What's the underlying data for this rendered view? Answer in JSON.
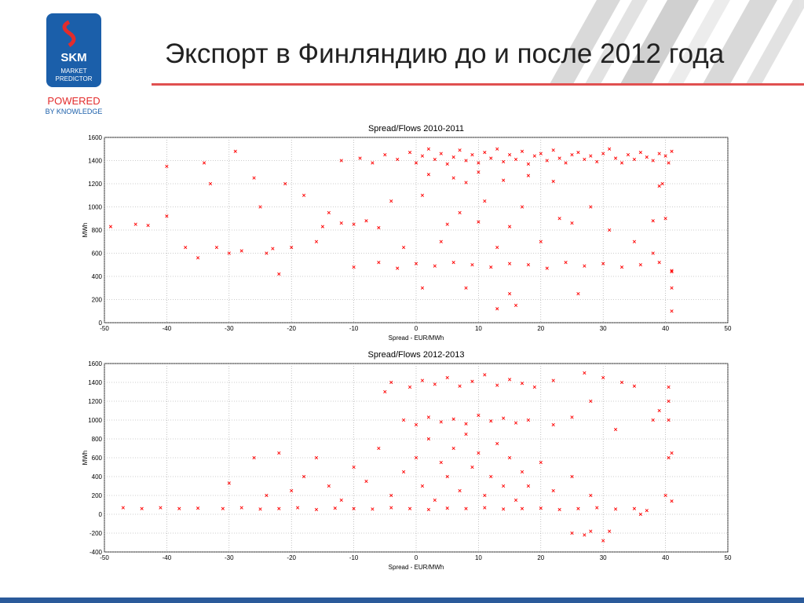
{
  "slide": {
    "title": "Экспорт в Финляндию до и после 2012 года",
    "logo": {
      "brand": "SKM",
      "line1": "MARKET",
      "line2": "PREDICTOR",
      "powered": "POWERED",
      "knowledge": "BY KNOWLEDGE"
    }
  },
  "chart_data": [
    {
      "type": "scatter",
      "title": "Spread/Flows 2010-2011",
      "x_label": "Spread - EUR/MWh",
      "y_label": "MWh",
      "color": "#ff0000",
      "marker": "x",
      "grid": true,
      "xlim": [
        -50,
        50
      ],
      "xticks": [
        -50,
        -40,
        -30,
        -20,
        -10,
        0,
        10,
        20,
        30,
        40,
        50
      ],
      "ylim": [
        0,
        1600
      ],
      "yticks": [
        0,
        200,
        400,
        600,
        800,
        1000,
        1200,
        1400,
        1600
      ],
      "x": [
        -12,
        -9,
        -7,
        -5,
        -3,
        -1,
        0,
        1,
        2,
        3,
        4,
        5,
        6,
        7,
        8,
        9,
        10,
        11,
        12,
        13,
        14,
        15,
        16,
        17,
        18,
        19,
        20,
        21,
        22,
        23,
        24,
        25,
        26,
        27,
        28,
        29,
        30,
        31,
        32,
        33,
        34,
        35,
        36,
        37,
        38,
        39,
        40,
        40.5,
        41,
        39.5,
        39,
        2,
        6,
        10,
        14,
        18,
        22,
        8,
        -10,
        -6,
        -3,
        0,
        3,
        6,
        9,
        12,
        15,
        18,
        21,
        24,
        27,
        30,
        33,
        36,
        39,
        41,
        -15,
        -12,
        -10,
        -8,
        -6,
        5,
        10,
        15,
        25,
        38,
        -25,
        -18,
        -16,
        -14,
        -4,
        -2,
        1,
        4,
        7,
        11,
        13,
        17,
        20,
        23,
        28,
        31,
        35,
        38,
        40,
        -49,
        -45,
        -43,
        -40,
        -40,
        -37,
        -35,
        -34,
        -33,
        -32,
        -30,
        -29,
        -28,
        -26,
        -24,
        -23,
        -22,
        -21,
        -20,
        41,
        41,
        41,
        26,
        15,
        13,
        16,
        1,
        8
      ],
      "values": [
        1400,
        1420,
        1380,
        1450,
        1410,
        1470,
        1380,
        1440,
        1500,
        1410,
        1460,
        1370,
        1430,
        1490,
        1400,
        1450,
        1380,
        1470,
        1420,
        1500,
        1390,
        1450,
        1410,
        1480,
        1370,
        1440,
        1460,
        1400,
        1490,
        1420,
        1380,
        1450,
        1470,
        1410,
        1440,
        1390,
        1460,
        1500,
        1420,
        1380,
        1450,
        1410,
        1470,
        1430,
        1400,
        1460,
        1440,
        1380,
        1480,
        1200,
        1180,
        1280,
        1250,
        1300,
        1230,
        1270,
        1220,
        1210,
        480,
        520,
        470,
        510,
        490,
        520,
        500,
        480,
        510,
        500,
        470,
        520,
        490,
        510,
        480,
        500,
        520,
        440,
        830,
        860,
        850,
        880,
        820,
        850,
        870,
        830,
        860,
        880,
        1000,
        1100,
        700,
        950,
        1050,
        650,
        1100,
        700,
        950,
        1050,
        650,
        1000,
        700,
        900,
        1000,
        800,
        700,
        600,
        900,
        830,
        850,
        840,
        1350,
        920,
        650,
        560,
        1380,
        1200,
        650,
        600,
        1480,
        620,
        1250,
        600,
        640,
        420,
        1200,
        650,
        100,
        300,
        450,
        250,
        250,
        120,
        150,
        300,
        300
      ]
    },
    {
      "type": "scatter",
      "title": "Spread/Flows 2012-2013",
      "x_label": "Spread - EUR/MWh",
      "y_label": "MWh",
      "color": "#ff0000",
      "marker": "x",
      "grid": true,
      "xlim": [
        -50,
        50
      ],
      "xticks": [
        -50,
        -40,
        -30,
        -20,
        -10,
        0,
        10,
        20,
        30,
        40,
        50
      ],
      "ylim": [
        -400,
        1600
      ],
      "yticks": [
        -400,
        -200,
        0,
        200,
        400,
        600,
        800,
        1000,
        1200,
        1400,
        1600
      ],
      "x": [
        -47,
        -44,
        -41,
        -38,
        -35,
        -31,
        -28,
        -25,
        -22,
        -19,
        -16,
        -13,
        -10,
        -7,
        -4,
        -1,
        2,
        5,
        8,
        11,
        14,
        17,
        20,
        23,
        26,
        29,
        32,
        35,
        37,
        -4,
        -1,
        1,
        3,
        5,
        7,
        9,
        11,
        13,
        15,
        17,
        19,
        22,
        -2,
        0,
        2,
        4,
        6,
        8,
        10,
        12,
        14,
        16,
        18,
        22,
        25,
        -20,
        -18,
        -16,
        -14,
        -12,
        -10,
        -8,
        -6,
        -4,
        -2,
        0,
        1,
        2,
        3,
        4,
        5,
        6,
        7,
        8,
        9,
        10,
        11,
        12,
        13,
        14,
        15,
        16,
        17,
        18,
        20,
        22,
        25,
        28,
        -22,
        -26,
        -30,
        -24,
        40.5,
        40.5,
        40.5,
        41,
        40.5,
        40,
        41,
        36,
        39,
        -5,
        27,
        30,
        33,
        35,
        38,
        28,
        32,
        25,
        27,
        30,
        31,
        28
      ],
      "values": [
        70,
        60,
        70,
        60,
        65,
        60,
        70,
        55,
        60,
        70,
        50,
        65,
        60,
        55,
        70,
        60,
        50,
        65,
        60,
        70,
        55,
        60,
        65,
        50,
        60,
        70,
        55,
        60,
        40,
        1400,
        1350,
        1420,
        1380,
        1450,
        1360,
        1410,
        1480,
        1370,
        1430,
        1390,
        1350,
        1420,
        1000,
        950,
        1030,
        980,
        1010,
        960,
        1050,
        990,
        1020,
        970,
        1000,
        950,
        1030,
        250,
        400,
        600,
        300,
        150,
        500,
        350,
        700,
        200,
        450,
        600,
        300,
        800,
        150,
        550,
        400,
        700,
        250,
        850,
        500,
        650,
        200,
        400,
        750,
        300,
        600,
        150,
        450,
        300,
        550,
        250,
        400,
        200,
        650,
        600,
        330,
        200,
        1350,
        1200,
        1000,
        650,
        600,
        200,
        140,
        0,
        1100,
        1300,
        1500,
        1450,
        1400,
        1360,
        1000,
        1200,
        900,
        -200,
        -220,
        -280,
        -180,
        -180
      ]
    }
  ]
}
